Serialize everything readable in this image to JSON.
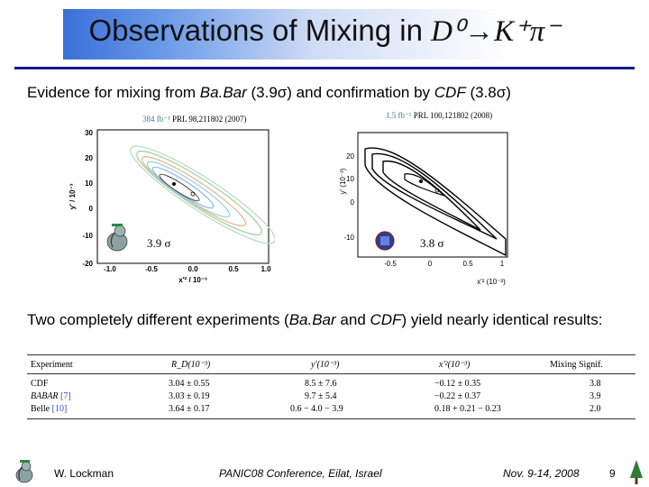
{
  "slide": {
    "title_prefix": "Observations of Mixing in ",
    "title_formula": "D⁰→K⁺π⁻",
    "line1_prefix": "Evidence for mixing from ",
    "line1_babar": "Ba.Bar",
    "line1_mid": " (3.9σ) and confirmation by ",
    "line1_cdf": "CDF",
    "line1_end": " (3.8σ)",
    "line2_prefix": "Two completely different experiments (",
    "line2_babar": "Ba.Bar",
    "line2_mid": " and ",
    "line2_cdf": "CDF",
    "line2_end": ") yield nearly identical results:"
  },
  "babar_plot": {
    "lumi": "384 fb⁻¹",
    "ref": "PRL 98,211802 (2007)",
    "xlabel": "x'² / 10⁻³",
    "ylabel": "y' / 10⁻³",
    "xticks": [
      "-1.0",
      "-0.5",
      "0.0",
      "0.5",
      "1.0"
    ],
    "yticks": [
      "30",
      "20",
      "10",
      "0",
      "-10",
      "-20"
    ],
    "significance": "3.9 σ"
  },
  "cdf_plot": {
    "lumi": "1.5 fb⁻¹",
    "ref": "PRL 100,121802 (2008)",
    "xlabel": "x'² (10⁻³)",
    "ylabel": "y' (10⁻³)",
    "xticks": [
      "-0.5",
      "0",
      "0.5",
      "1"
    ],
    "yticks": [
      "20",
      "10",
      "0",
      "-10"
    ],
    "significance": "3.8 σ"
  },
  "table": {
    "headers": [
      "Experiment",
      "R_D(10⁻³)",
      "y'(10⁻³)",
      "x'²(10⁻³)",
      "Mixing Signif."
    ],
    "rows": [
      {
        "exp": "CDF",
        "ref": "",
        "rd": "3.04 ± 0.55",
        "y": "8.5 ± 7.6",
        "x2": "−0.12 ± 0.35",
        "sig": "3.8"
      },
      {
        "exp": "BABAR",
        "ref": "[7]",
        "rd": "3.03 ± 0.19",
        "y": "9.7 ± 5.4",
        "x2": "−0.22 ± 0.37",
        "sig": "3.9"
      },
      {
        "exp": "Belle",
        "ref": "[10]",
        "rd": "3.64 ± 0.17",
        "y": "0.6 − 4.0 − 3.9",
        "x2": "0.18 + 0.21 − 0.23",
        "sig": "2.0"
      }
    ]
  },
  "footer": {
    "author": "W. Lockman",
    "conference": "PANIC08 Conference, Eilat, Israel",
    "date": "Nov. 9-14, 2008",
    "page": "9"
  }
}
